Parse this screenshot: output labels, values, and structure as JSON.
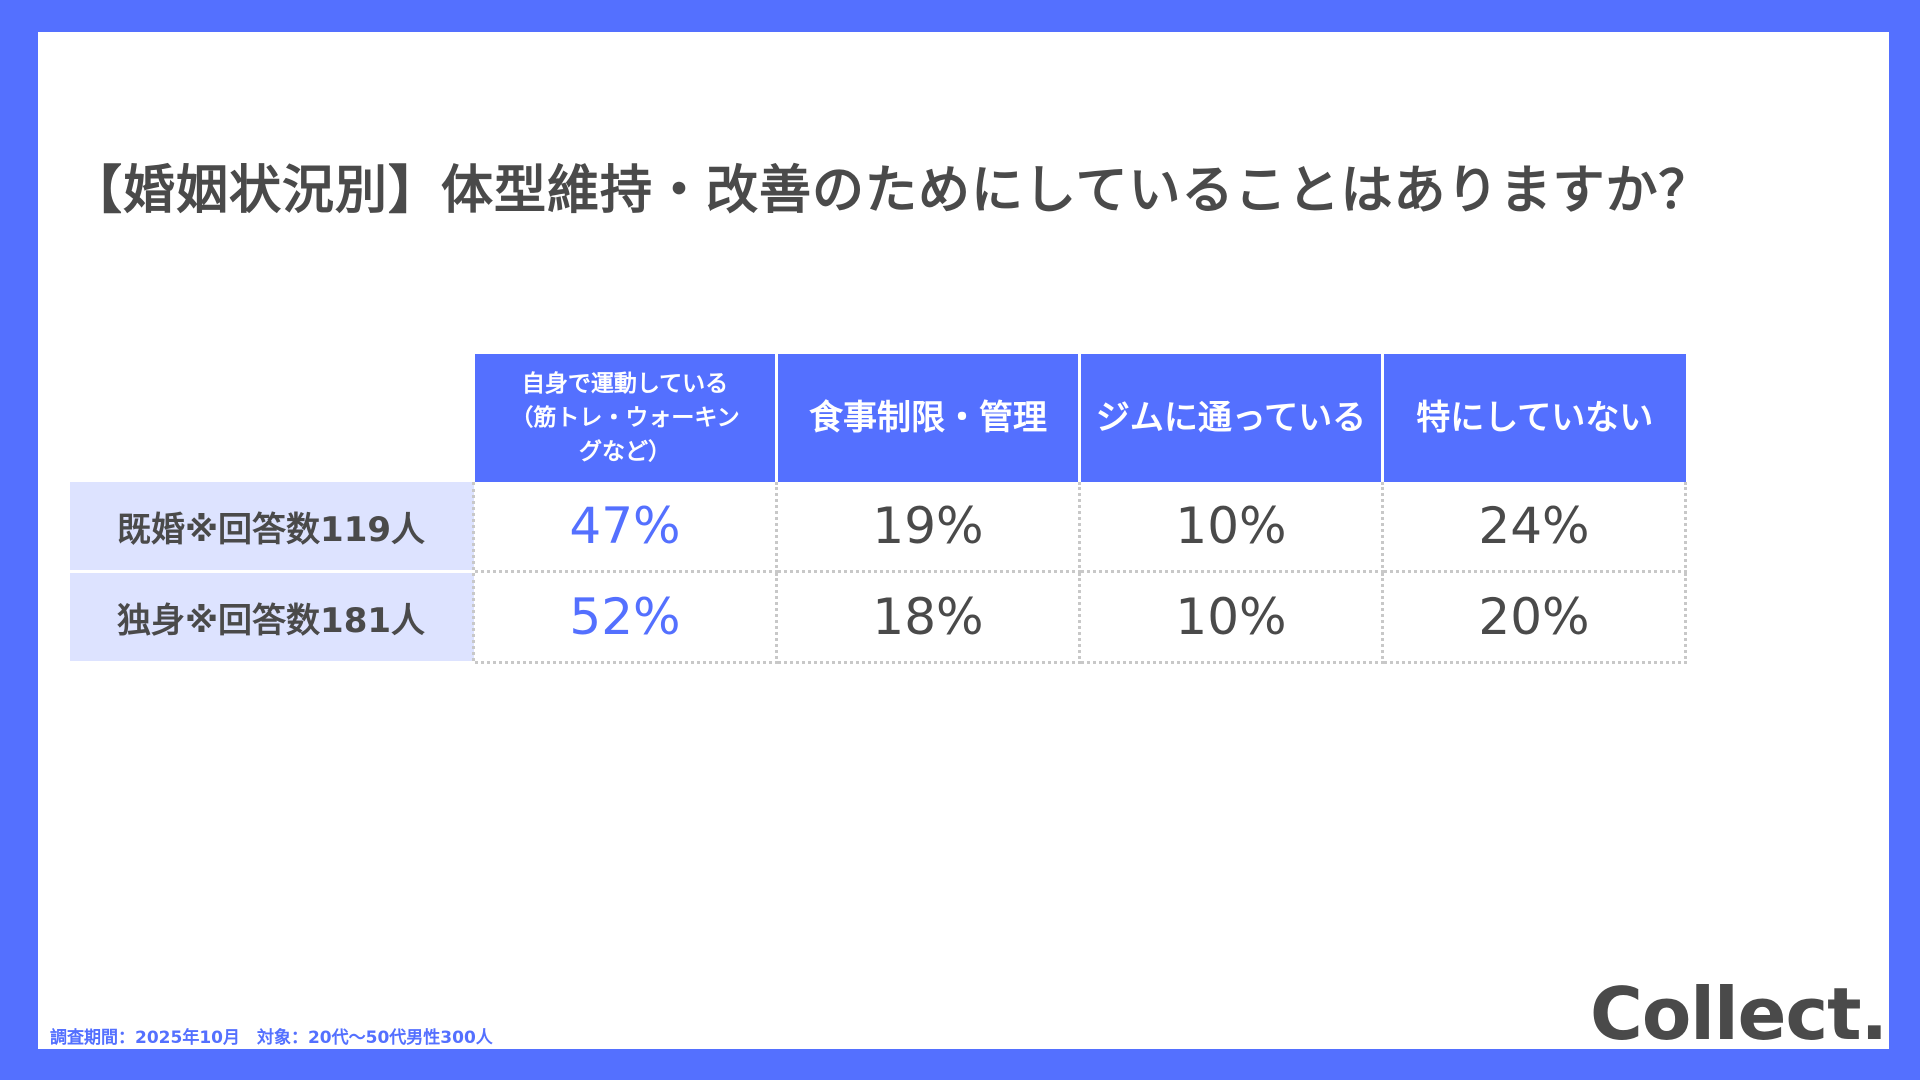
{
  "title": "【婚姻状況別】体型維持・改善のためにしていることはありますか？",
  "chart_data": {
    "type": "table",
    "columns": [
      "自身で運動している（筋トレ・ウォーキングなど）",
      "食事制限・管理",
      "ジムに通っている",
      "特にしていない"
    ],
    "rows": [
      {
        "label": "既婚※回答数119人",
        "values": [
          "47%",
          "19%",
          "10%",
          "24%"
        ]
      },
      {
        "label": "独身※回答数181人",
        "values": [
          "52%",
          "18%",
          "10%",
          "20%"
        ]
      }
    ],
    "highlight_color": "#5470ff",
    "header_color": "#5470ff",
    "row_header_color": "#dde3ff"
  },
  "header_lines": {
    "col0": [
      "自身で運動している",
      "（筋トレ・ウォーキン",
      "グなど）"
    ]
  },
  "footnote": "調査期間：2025年10月　対象：20代〜50代男性300人",
  "logo": "Collect.",
  "colors": {
    "background": "#5470ff",
    "text": "#4a4a4a"
  }
}
